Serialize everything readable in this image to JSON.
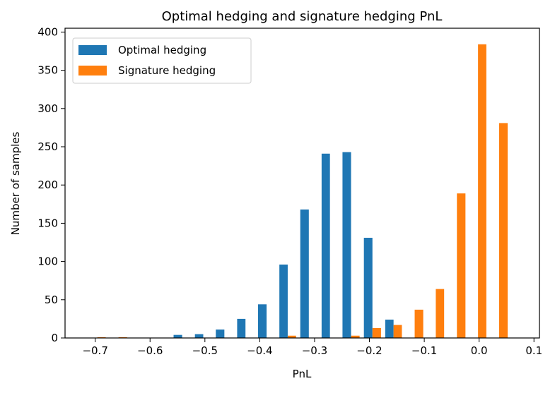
{
  "chart_data": {
    "type": "bar",
    "title": "Optimal hedging and signature hedging PnL",
    "xlabel": "PnL",
    "ylabel": "Number of samples",
    "xlim": [
      -0.755,
      0.11
    ],
    "ylim": [
      0,
      405
    ],
    "xticks": [
      -0.7,
      -0.6,
      -0.5,
      -0.4,
      -0.3,
      -0.2,
      -0.1,
      0.0,
      0.1
    ],
    "xtick_labels": [
      "−0.7",
      "−0.6",
      "−0.5",
      "−0.4",
      "−0.3",
      "−0.2",
      "−0.1",
      "0.0",
      "0.1"
    ],
    "yticks": [
      0,
      50,
      100,
      150,
      200,
      250,
      300,
      350,
      400
    ],
    "ytick_labels": [
      "0",
      "50",
      "100",
      "150",
      "200",
      "250",
      "300",
      "350",
      "400"
    ],
    "grid": false,
    "legend_position": "top-left",
    "bin_edges": [
      -0.715,
      -0.677,
      -0.638,
      -0.599,
      -0.561,
      -0.522,
      -0.484,
      -0.445,
      -0.407,
      -0.368,
      -0.33,
      -0.291,
      -0.253,
      -0.214,
      -0.175,
      -0.137,
      -0.098,
      -0.06,
      -0.021,
      0.017,
      0.056,
      0.094
    ],
    "series": [
      {
        "name": "Optimal hedging",
        "color": "#1f77b4",
        "values": [
          0,
          0,
          0,
          0,
          4,
          5,
          11,
          25,
          44,
          96,
          168,
          241,
          243,
          131,
          24,
          0,
          0,
          0,
          0,
          0,
          0
        ]
      },
      {
        "name": "Signature hedging",
        "color": "#ff7f0e",
        "values": [
          1,
          1,
          0,
          0,
          0,
          0,
          0,
          0,
          0,
          3,
          0,
          0,
          3,
          13,
          17,
          37,
          64,
          189,
          384,
          281,
          0
        ]
      }
    ]
  }
}
